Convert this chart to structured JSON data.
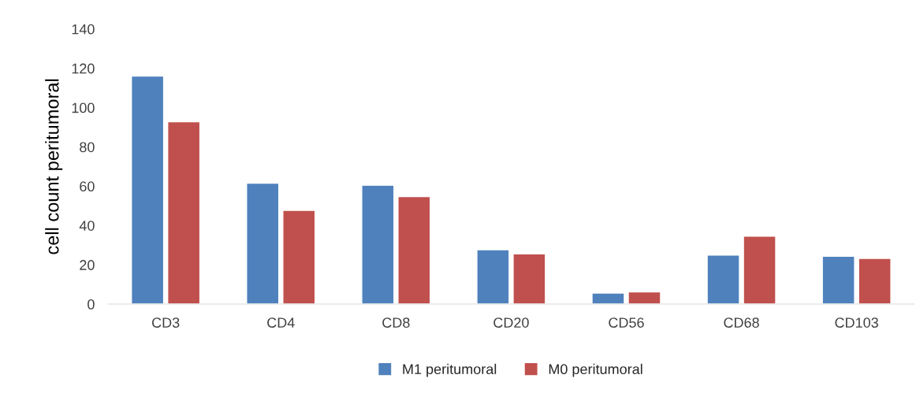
{
  "chart_data": {
    "type": "bar",
    "ylabel": "cell count peritumoral",
    "categories": [
      "CD3",
      "CD4",
      "CD8",
      "CD20",
      "CD56",
      "CD68",
      "CD103"
    ],
    "series": [
      {
        "name": "M1 peritumoral",
        "color": "#4f81bd",
        "values": [
          116,
          61.5,
          60.5,
          27.7,
          5.6,
          25,
          24.4
        ]
      },
      {
        "name": "M0 peritumoral",
        "color": "#c0504d",
        "values": [
          92.8,
          47.7,
          54.7,
          25.6,
          6.2,
          34.6,
          23.3
        ]
      }
    ],
    "ylim": [
      0,
      140
    ],
    "yticks": [
      0,
      20,
      40,
      60,
      80,
      100,
      120,
      140
    ],
    "grid": false,
    "legend": "bottom"
  }
}
